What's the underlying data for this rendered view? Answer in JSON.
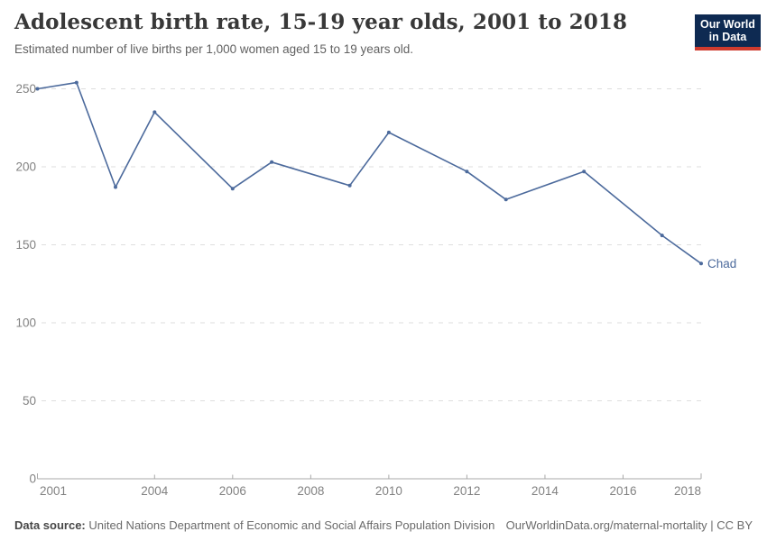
{
  "header": {
    "title": "Adolescent birth rate, 15-19 year olds, 2001 to 2018",
    "subtitle": "Estimated number of live births per 1,000 women aged 15 to 19 years old.",
    "logo": {
      "line1": "Our World",
      "line2": "in Data"
    }
  },
  "chart_data": {
    "type": "line",
    "title": "Adolescent birth rate, 15-19 year olds, 2001 to 2018",
    "ylabel": "Estimated number of live births per 1,000 women aged 15 to 19 years old",
    "xlim": [
      2001,
      2018
    ],
    "ylim": [
      0,
      250
    ],
    "grid": "horizontal-dashed",
    "legend_position": "end-of-line-label",
    "x_ticks": [
      2001,
      2004,
      2006,
      2008,
      2010,
      2012,
      2014,
      2016,
      2018
    ],
    "y_ticks": [
      0,
      50,
      100,
      150,
      200,
      250
    ],
    "series": [
      {
        "name": "Chad",
        "color": "#4C6A9C",
        "points": [
          [
            2001,
            250
          ],
          [
            2002,
            254
          ],
          [
            2003,
            187
          ],
          [
            2004,
            235
          ],
          [
            2006,
            186
          ],
          [
            2007,
            203
          ],
          [
            2009,
            188
          ],
          [
            2010,
            222
          ],
          [
            2012,
            197
          ],
          [
            2013,
            179
          ],
          [
            2015,
            197
          ],
          [
            2017,
            156
          ],
          [
            2018,
            138
          ]
        ]
      }
    ],
    "end_label": "Chad"
  },
  "colors": {
    "line": "#4C6A9C",
    "gridline": "#dedede",
    "axis": "#a8a8a8",
    "tick_label": "#828282",
    "logo_navy": "#0e2a52",
    "logo_red": "#cf3b2e"
  },
  "footer": {
    "datasource_label": "Data source:",
    "datasource_text": " United Nations Department of Economic and Social Affairs Population Division",
    "link": "OurWorldinData.org/maternal-mortality | CC BY"
  }
}
